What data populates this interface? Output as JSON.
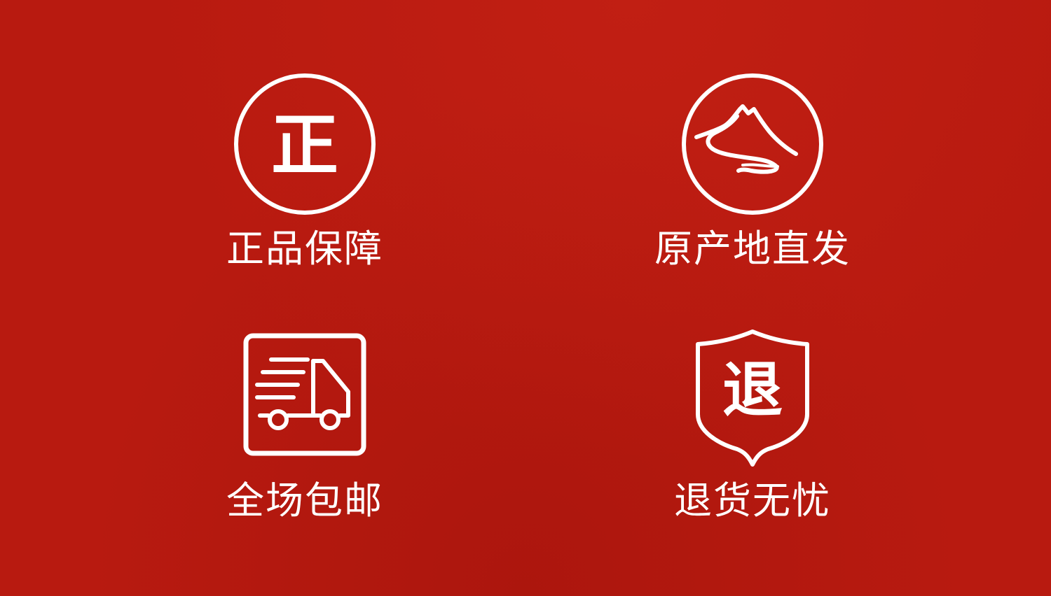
{
  "theme": {
    "background": "#b81a10",
    "foreground": "#ffffff"
  },
  "features": [
    {
      "id": "authentic",
      "icon": "authentic-seal-icon",
      "icon_glyph": "正",
      "label": "正品保障"
    },
    {
      "id": "origin",
      "icon": "mountain-icon",
      "label": "原产地直发"
    },
    {
      "id": "shipping",
      "icon": "delivery-truck-icon",
      "label": "全场包邮"
    },
    {
      "id": "returns",
      "icon": "return-shield-icon",
      "icon_glyph": "退",
      "label": "退货无忧"
    }
  ]
}
